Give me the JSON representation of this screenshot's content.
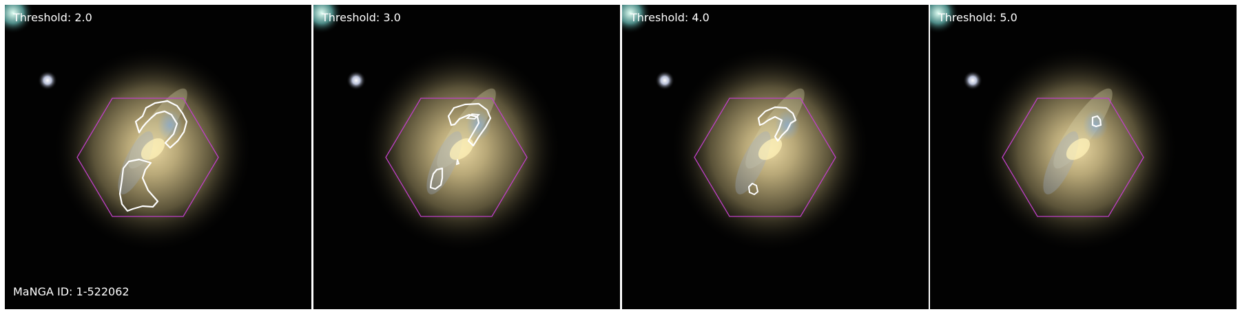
{
  "galaxy_id_label": "MaNGA ID: 1-522062",
  "panels": [
    {
      "title": "Threshold: 2.0"
    },
    {
      "title": "Threshold: 3.0"
    },
    {
      "title": "Threshold: 4.0"
    },
    {
      "title": "Threshold: 5.0"
    }
  ],
  "colors": {
    "hexagon": "#c040c8",
    "contour": "#ffffff",
    "background": "#020202"
  }
}
